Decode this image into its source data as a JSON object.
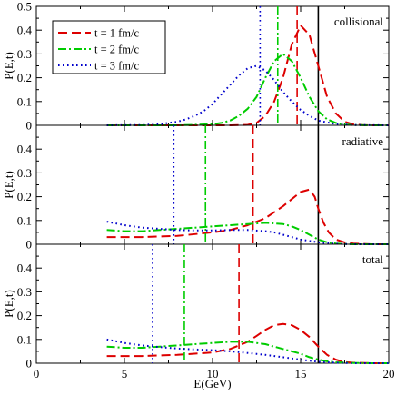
{
  "chart_data": {
    "type": "line",
    "xlabel": "E(GeV)",
    "xlim": [
      0,
      20
    ],
    "x_ticks": [
      "0",
      "5",
      "10",
      "15",
      "20"
    ],
    "ref_line_x": 16,
    "series_styles": [
      {
        "color": "#dd0000",
        "dash": "10,5"
      },
      {
        "color": "#00cc00",
        "dash": "9,3,2,3"
      },
      {
        "color": "#0000cc",
        "dash": "1.6,3.4"
      }
    ],
    "legend": [
      "t = 1 fm/c",
      "t = 2 fm/c",
      "t = 3 fm/c"
    ],
    "panels": [
      {
        "label": "collisional",
        "ylabel": "P(E,t)",
        "ylim": [
          0,
          0.5
        ],
        "y_ticks": [
          "0",
          "0.1",
          "0.2",
          "0.3",
          "0.4",
          "0.5"
        ],
        "series": [
          {
            "name": "t = 1 fm/c",
            "marker_x": 14.8,
            "x": [
              4,
              10,
              11,
              12,
              12.5,
              13,
              13.5,
              14,
              14.5,
              15,
              15.5,
              16,
              16.5,
              17,
              17.5,
              18,
              18.5,
              19,
              20
            ],
            "y": [
              0,
              0,
              0,
              0.002,
              0.01,
              0.04,
              0.1,
              0.2,
              0.34,
              0.42,
              0.38,
              0.25,
              0.12,
              0.05,
              0.015,
              0.004,
              0.001,
              0,
              0
            ]
          },
          {
            "name": "t = 2 fm/c",
            "marker_x": 13.7,
            "x": [
              4,
              8,
              9,
              10,
              10.5,
              11,
              11.5,
              12,
              12.5,
              13,
              13.5,
              14,
              14.5,
              15,
              15.5,
              16,
              16.5,
              17,
              17.5,
              18,
              19,
              20
            ],
            "y": [
              0,
              0,
              0.002,
              0.005,
              0.01,
              0.02,
              0.04,
              0.07,
              0.12,
              0.2,
              0.27,
              0.3,
              0.27,
              0.2,
              0.12,
              0.06,
              0.025,
              0.01,
              0.003,
              0.001,
              0,
              0
            ]
          },
          {
            "name": "t = 3 fm/c",
            "marker_x": 12.7,
            "x": [
              4,
              6,
              7,
              8,
              8.5,
              9,
              9.5,
              10,
              10.5,
              11,
              11.5,
              12,
              12.5,
              13,
              13.5,
              14,
              14.5,
              15,
              15.5,
              16,
              17,
              18,
              20
            ],
            "y": [
              0,
              0.001,
              0.005,
              0.015,
              0.025,
              0.04,
              0.06,
              0.09,
              0.13,
              0.17,
              0.21,
              0.24,
              0.25,
              0.23,
              0.19,
              0.14,
              0.1,
              0.065,
              0.04,
              0.02,
              0.005,
              0.001,
              0
            ]
          }
        ]
      },
      {
        "label": "radiative",
        "ylabel": "P(E,t)",
        "ylim": [
          0,
          0.5
        ],
        "y_ticks": [
          "0",
          "0.1",
          "0.2",
          "0.3",
          "0.4"
        ],
        "series": [
          {
            "name": "t = 1 fm/c",
            "marker_x": 12.3,
            "x": [
              4,
              6,
              8,
              10,
              11,
              12,
              13,
              14,
              14.5,
              15,
              15.5,
              15.8,
              16,
              16.3,
              16.6,
              17,
              17.5,
              18,
              19,
              20
            ],
            "y": [
              0.03,
              0.03,
              0.035,
              0.05,
              0.06,
              0.08,
              0.11,
              0.16,
              0.19,
              0.22,
              0.23,
              0.2,
              0.15,
              0.09,
              0.05,
              0.02,
              0.008,
              0.003,
              0,
              0
            ]
          },
          {
            "name": "t = 2 fm/c",
            "marker_x": 9.6,
            "x": [
              4,
              5,
              6,
              7,
              8,
              9,
              10,
              11,
              12,
              13,
              14,
              14.5,
              15,
              15.5,
              16,
              16.5,
              17,
              17.5,
              18,
              19,
              20
            ],
            "y": [
              0.06,
              0.055,
              0.055,
              0.06,
              0.065,
              0.07,
              0.075,
              0.08,
              0.085,
              0.09,
              0.085,
              0.075,
              0.06,
              0.04,
              0.02,
              0.008,
              0.003,
              0.001,
              0,
              0,
              0
            ]
          },
          {
            "name": "t = 3 fm/c",
            "marker_x": 7.8,
            "x": [
              4,
              5,
              6,
              7,
              8,
              9,
              10,
              11,
              12,
              13,
              13.5,
              14,
              14.5,
              15,
              16,
              17,
              18,
              20
            ],
            "y": [
              0.095,
              0.08,
              0.07,
              0.065,
              0.06,
              0.058,
              0.058,
              0.06,
              0.06,
              0.055,
              0.05,
              0.04,
              0.03,
              0.02,
              0.008,
              0.002,
              0,
              0
            ]
          }
        ]
      },
      {
        "label": "total",
        "ylabel": "P(E,t)",
        "ylim": [
          0,
          0.5
        ],
        "y_ticks": [
          "0",
          "0.1",
          "0.2",
          "0.3",
          "0.4"
        ],
        "series": [
          {
            "name": "t = 1 fm/c",
            "marker_x": 11.5,
            "x": [
              4,
              6,
              8,
              10,
              11,
              12,
              12.5,
              13,
              13.5,
              14,
              14.5,
              15,
              15.5,
              16,
              16.5,
              17,
              17.5,
              18,
              19,
              20
            ],
            "y": [
              0.03,
              0.03,
              0.035,
              0.045,
              0.06,
              0.09,
              0.115,
              0.14,
              0.16,
              0.165,
              0.16,
              0.14,
              0.11,
              0.07,
              0.035,
              0.015,
              0.005,
              0.002,
              0,
              0
            ]
          },
          {
            "name": "t = 2 fm/c",
            "marker_x": 8.4,
            "x": [
              4,
              5,
              6,
              7,
              8,
              9,
              10,
              11,
              12,
              12.5,
              13,
              13.5,
              14,
              14.5,
              15,
              15.5,
              16,
              16.5,
              17,
              18,
              19,
              20
            ],
            "y": [
              0.07,
              0.065,
              0.065,
              0.07,
              0.075,
              0.08,
              0.085,
              0.09,
              0.09,
              0.085,
              0.08,
              0.07,
              0.06,
              0.05,
              0.04,
              0.025,
              0.015,
              0.008,
              0.004,
              0.001,
              0,
              0
            ]
          },
          {
            "name": "t = 3 fm/c",
            "marker_x": 6.6,
            "x": [
              4,
              5,
              6,
              7,
              8,
              9,
              10,
              11,
              12,
              13,
              14,
              15,
              16,
              17,
              18,
              20
            ],
            "y": [
              0.1,
              0.085,
              0.075,
              0.068,
              0.062,
              0.058,
              0.055,
              0.05,
              0.043,
              0.035,
              0.025,
              0.015,
              0.006,
              0.002,
              0,
              0
            ]
          }
        ]
      }
    ]
  }
}
